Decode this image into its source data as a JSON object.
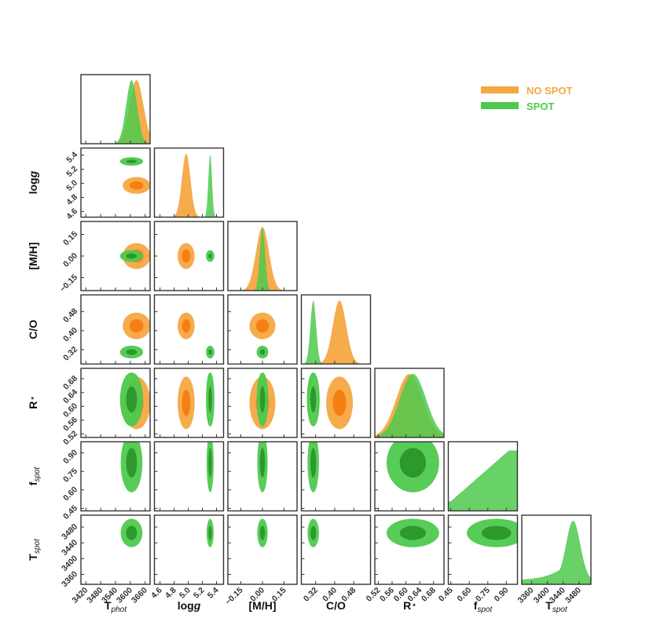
{
  "chart_data": {
    "type": "corner",
    "title": "",
    "parameters": [
      {
        "id": "tphot",
        "label": "T",
        "sub": "phot",
        "range": [
          3400,
          3680
        ],
        "ticks": [
          "3420",
          "3480",
          "3540",
          "3600",
          "3660"
        ],
        "tick_values": [
          3420,
          3480,
          3540,
          3600,
          3660
        ]
      },
      {
        "id": "logg",
        "label": "log",
        "italic": "g",
        "range": [
          4.52,
          5.5
        ],
        "ticks": [
          "4.6",
          "4.8",
          "5.0",
          "5.2",
          "5.4"
        ],
        "tick_values": [
          4.6,
          4.8,
          5.0,
          5.2,
          5.4
        ]
      },
      {
        "id": "mh",
        "label": "[M/H]",
        "range": [
          -0.24,
          0.24
        ],
        "ticks": [
          "−0.15",
          "0.00",
          "0.15"
        ],
        "tick_values": [
          -0.15,
          0.0,
          0.15
        ]
      },
      {
        "id": "co",
        "label": "C/O",
        "range": [
          0.26,
          0.55
        ],
        "ticks": [
          "0.32",
          "0.40",
          "0.48"
        ],
        "tick_values": [
          0.32,
          0.4,
          0.48
        ]
      },
      {
        "id": "rstar",
        "label": "R",
        "sup": "*",
        "range": [
          0.51,
          0.71
        ],
        "ticks": [
          "0.52",
          "0.56",
          "0.60",
          "0.64",
          "0.68"
        ],
        "tick_values": [
          0.52,
          0.56,
          0.6,
          0.64,
          0.68
        ]
      },
      {
        "id": "fspot",
        "label": "f",
        "sub": "spot",
        "range": [
          0.43,
          0.99
        ],
        "ticks": [
          "0.45",
          "0.60",
          "0.75",
          "0.90"
        ],
        "tick_values": [
          0.45,
          0.6,
          0.75,
          0.9
        ]
      },
      {
        "id": "tspot",
        "label": "T",
        "sub": "spot",
        "range": [
          3335,
          3510
        ],
        "ticks": [
          "3360",
          "3400",
          "3440",
          "3480"
        ],
        "tick_values": [
          3360,
          3400,
          3440,
          3480
        ]
      }
    ],
    "legend": {
      "position": "top-right",
      "entries": [
        {
          "label": "NO SPOT",
          "color": "#f5a742"
        },
        {
          "label": "SPOT",
          "color": "#4ec94e"
        }
      ]
    },
    "series": [
      {
        "name": "NO SPOT",
        "color": "#f5a742",
        "inner_color": "#f57c0f",
        "params": {
          "tphot": {
            "mean": 3625,
            "sd": 28
          },
          "logg": {
            "mean": 4.97,
            "sd": 0.06
          },
          "mh": {
            "mean": 0.0,
            "sd": 0.045
          },
          "co": {
            "mean": 0.42,
            "sd": 0.028
          },
          "rstar": {
            "mean": 0.61,
            "sd": 0.038
          }
        }
      },
      {
        "name": "SPOT",
        "color": "#4ec94e",
        "inner_color": "#2b962b",
        "params": {
          "tphot": {
            "mean": 3605,
            "sd": 22
          },
          "logg": {
            "mean": 5.31,
            "sd": 0.025
          },
          "mh": {
            "mean": 0.0,
            "sd": 0.018
          },
          "co": {
            "mean": 0.31,
            "sd": 0.012
          },
          "rstar": {
            "mean": 0.62,
            "sd": 0.038
          },
          "fspot": {
            "mean": 0.82,
            "sd": 0.12
          },
          "tspot": {
            "mean": 3465,
            "sd": 18
          }
        }
      }
    ]
  }
}
